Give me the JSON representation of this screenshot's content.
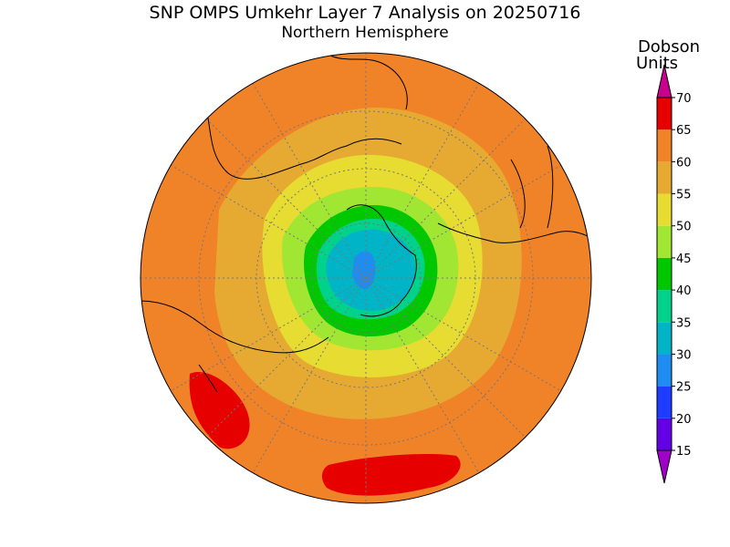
{
  "header": {
    "title": "SNP OMPS Umkehr Layer 7 Analysis on 20250716",
    "subtitle": "Northern Hemisphere"
  },
  "colorbar": {
    "label": [
      "Dobson",
      "Units"
    ],
    "ticks": [
      15,
      20,
      25,
      30,
      35,
      40,
      45,
      50,
      55,
      60,
      65,
      70
    ],
    "colors": [
      "#a000c8",
      "#6400e6",
      "#1e3cff",
      "#1e8cf0",
      "#00b4c8",
      "#00d28c",
      "#00c800",
      "#a0e632",
      "#e6dc32",
      "#e6aa32",
      "#f08228",
      "#e60000",
      "#c8008c"
    ]
  }
}
